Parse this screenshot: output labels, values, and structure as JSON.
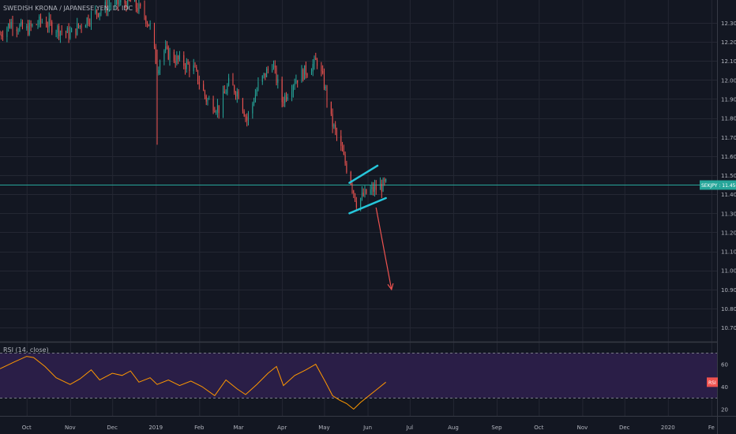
{
  "header": {
    "symbol_title": "SWEDISH KRONA / JAPANESE YEN, D, IDC"
  },
  "price_scale": {
    "ticks": [
      "12.300",
      "12.200",
      "12.100",
      "12.000",
      "11.900",
      "11.800",
      "11.700",
      "11.600",
      "11.500",
      "11.400",
      "11.300",
      "11.200",
      "11.100",
      "11.000",
      "10.900",
      "10.800",
      "10.700"
    ],
    "current_label": "SEKJPY : 11.450",
    "current_value": 11.45
  },
  "rsi_panel": {
    "label": "RSI (14, close)",
    "ticks": [
      "60",
      "40",
      "20"
    ],
    "upper_band": 70,
    "lower_band": 30,
    "current_label": "RSI"
  },
  "time_axis": {
    "labels": [
      "Oct",
      "Nov",
      "Dec",
      "2019",
      "Feb",
      "Mar",
      "Apr",
      "May",
      "Jun",
      "Jul",
      "Aug",
      "Sep",
      "Oct",
      "Nov",
      "Dec",
      "2020",
      "Fe"
    ]
  },
  "colors": {
    "background": "#131722",
    "grid": "#242733",
    "up_candle": "#26a69a",
    "down_candle": "#ef5350",
    "price_line": "#26a69a",
    "rsi_line": "#ff9800",
    "rsi_band_fill": "#2a1e47",
    "pattern_lines": "#26c6da",
    "arrow": "#ef5350",
    "axis_text": "#b2b5be"
  },
  "chart_data": {
    "type": "candlestick",
    "title": "SWEDISH KRONA / JAPANESE YEN, D, IDC",
    "ylim": [
      10.63,
      12.42
    ],
    "x_range": [
      "2018-09-12",
      "2020-02-05"
    ],
    "anchors": [
      {
        "x": "2018-09-12",
        "y": 12.24
      },
      {
        "x": "2018-09-20",
        "y": 12.3
      },
      {
        "x": "2018-09-30",
        "y": 12.26
      },
      {
        "x": "2018-10-12",
        "y": 12.31
      },
      {
        "x": "2018-10-22",
        "y": 12.27
      },
      {
        "x": "2018-11-01",
        "y": 12.24
      },
      {
        "x": "2018-11-10",
        "y": 12.3
      },
      {
        "x": "2018-11-20",
        "y": 12.36
      },
      {
        "x": "2018-12-01",
        "y": 12.4
      },
      {
        "x": "2018-12-15",
        "y": 12.41
      },
      {
        "x": "2018-12-24",
        "y": 12.34
      },
      {
        "x": "2018-12-28",
        "y": 12.28
      },
      {
        "x": "2019-01-02",
        "y": 12.06
      },
      {
        "x": "2019-01-06",
        "y": 12.16
      },
      {
        "x": "2019-01-15",
        "y": 12.11
      },
      {
        "x": "2019-01-28",
        "y": 12.06
      },
      {
        "x": "2019-02-06",
        "y": 11.9
      },
      {
        "x": "2019-02-15",
        "y": 11.85
      },
      {
        "x": "2019-02-22",
        "y": 11.98
      },
      {
        "x": "2019-03-01",
        "y": 11.93
      },
      {
        "x": "2019-03-07",
        "y": 11.79
      },
      {
        "x": "2019-03-15",
        "y": 11.97
      },
      {
        "x": "2019-03-25",
        "y": 12.09
      },
      {
        "x": "2019-04-01",
        "y": 11.89
      },
      {
        "x": "2019-04-10",
        "y": 12.0
      },
      {
        "x": "2019-04-20",
        "y": 12.06
      },
      {
        "x": "2019-04-26",
        "y": 12.1
      },
      {
        "x": "2019-05-01",
        "y": 11.98
      },
      {
        "x": "2019-05-06",
        "y": 11.79
      },
      {
        "x": "2019-05-12",
        "y": 11.66
      },
      {
        "x": "2019-05-20",
        "y": 11.47
      },
      {
        "x": "2019-05-24",
        "y": 11.36
      },
      {
        "x": "2019-06-01",
        "y": 11.41
      },
      {
        "x": "2019-06-10",
        "y": 11.44
      },
      {
        "x": "2019-06-14",
        "y": 11.45
      }
    ],
    "wick_spikes": [
      {
        "x": "2019-01-02",
        "low": 11.66,
        "high": 12.16
      }
    ],
    "rsi_ylim": [
      14,
      78
    ],
    "rsi": [
      {
        "x": "2018-09-12",
        "y": 56
      },
      {
        "x": "2018-09-22",
        "y": 62
      },
      {
        "x": "2018-10-01",
        "y": 67
      },
      {
        "x": "2018-10-06",
        "y": 66
      },
      {
        "x": "2018-10-14",
        "y": 58
      },
      {
        "x": "2018-10-22",
        "y": 48
      },
      {
        "x": "2018-11-01",
        "y": 42
      },
      {
        "x": "2018-11-08",
        "y": 47
      },
      {
        "x": "2018-11-16",
        "y": 55
      },
      {
        "x": "2018-11-22",
        "y": 46
      },
      {
        "x": "2018-12-01",
        "y": 52
      },
      {
        "x": "2018-12-08",
        "y": 50
      },
      {
        "x": "2018-12-14",
        "y": 54
      },
      {
        "x": "2018-12-20",
        "y": 44
      },
      {
        "x": "2018-12-28",
        "y": 48
      },
      {
        "x": "2019-01-02",
        "y": 42
      },
      {
        "x": "2019-01-10",
        "y": 46
      },
      {
        "x": "2019-01-18",
        "y": 41
      },
      {
        "x": "2019-01-26",
        "y": 45
      },
      {
        "x": "2019-02-03",
        "y": 40
      },
      {
        "x": "2019-02-12",
        "y": 32
      },
      {
        "x": "2019-02-20",
        "y": 46
      },
      {
        "x": "2019-02-28",
        "y": 38
      },
      {
        "x": "2019-03-06",
        "y": 33
      },
      {
        "x": "2019-03-14",
        "y": 42
      },
      {
        "x": "2019-03-22",
        "y": 52
      },
      {
        "x": "2019-03-28",
        "y": 58
      },
      {
        "x": "2019-04-02",
        "y": 41
      },
      {
        "x": "2019-04-10",
        "y": 50
      },
      {
        "x": "2019-04-18",
        "y": 55
      },
      {
        "x": "2019-04-25",
        "y": 60
      },
      {
        "x": "2019-05-02",
        "y": 44
      },
      {
        "x": "2019-05-07",
        "y": 32
      },
      {
        "x": "2019-05-12",
        "y": 28
      },
      {
        "x": "2019-05-17",
        "y": 25
      },
      {
        "x": "2019-05-22",
        "y": 20
      },
      {
        "x": "2019-05-27",
        "y": 26
      },
      {
        "x": "2019-06-02",
        "y": 32
      },
      {
        "x": "2019-06-08",
        "y": 38
      },
      {
        "x": "2019-06-14",
        "y": 44
      }
    ],
    "annotations": {
      "pattern_upper": [
        {
          "x": "2019-05-19",
          "y": 11.46
        },
        {
          "x": "2019-06-08",
          "y": 11.55
        }
      ],
      "pattern_lower": [
        {
          "x": "2019-05-19",
          "y": 11.3
        },
        {
          "x": "2019-06-14",
          "y": 11.38
        }
      ],
      "arrow": [
        {
          "x": "2019-06-07",
          "y": 11.33
        },
        {
          "x": "2019-06-18",
          "y": 10.9
        }
      ]
    }
  }
}
